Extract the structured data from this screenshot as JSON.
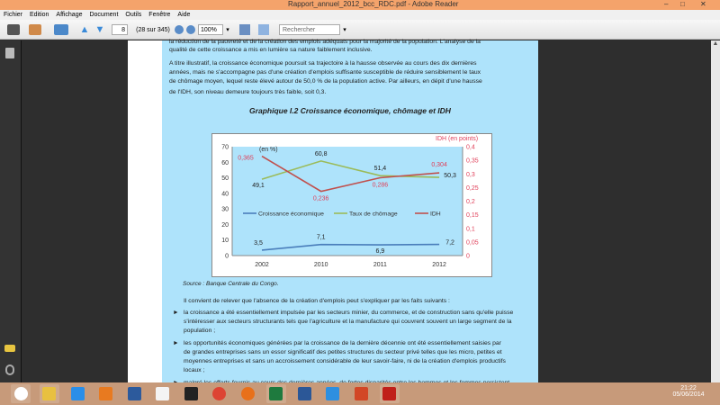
{
  "window": {
    "title": "Rapport_annuel_2012_bcc_RDC.pdf - Adobe Reader",
    "min": "–",
    "max": "□",
    "close": "✕"
  },
  "menu": [
    "Fichier",
    "Edition",
    "Affichage",
    "Document",
    "Outils",
    "Fenêtre",
    "Aide"
  ],
  "toolbar": {
    "page_value": "8",
    "page_count": "(28 sur 345)",
    "zoom_value": "100%",
    "search_placeholder": "Rechercher"
  },
  "doc": {
    "para1": [
      "la réduction de la pauvreté et de la création des emplois adéquats pour la majorité de la population. L'analyse de la",
      "qualité de cette croissance a mis en lumière sa nature faiblement inclusive."
    ],
    "para2": [
      "A titre illustratif, la croissance économique poursuit sa trajectoire à la hausse observée au cours des dix dernières",
      "années, mais ne s'accompagne pas d'une création d'emplois suffisante susceptible de réduire sensiblement le taux",
      "de chômage moyen, lequel reste élevé autour de 50,0 % de la population active. Par ailleurs, en dépit d'une hausse",
      "de l'IDH, son niveau demeure toujours très faible, soit 0,3."
    ],
    "chart_title": "Graphique I.2 Croissance économique, chômage et IDH",
    "source": "Source : Banque Centrale du Congo.",
    "para3": "Il convient de relever que l'absence de la création d'emplois peut s'expliquer par les faits suivants :",
    "bullets": [
      [
        "la croissance a été essentiellement impulsée par les secteurs minier, du commerce, et de construction sans qu'elle puisse",
        "s'intéresser aux secteurs structurants tels que l'agriculture et la manufacture qui couvrent  souvent un large segment de la",
        "population ;"
      ],
      [
        "les opportunités économiques générées par la croissance de la dernière décennie ont été essentiellement saisies par",
        "de grandes entreprises sans un essor significatif des petites structures du secteur privé telles que les micro, petites et",
        "moyennes entreprises et sans un accroissement considérable de leur savoir-faire, ni de la création d'emplois productifs",
        "locaux ;"
      ],
      [
        "malgré les efforts fournis au cours des dernières années, de fortes disparités entre les hommes et les femmes persistent"
      ]
    ]
  },
  "chart_data": {
    "type": "line",
    "categories": [
      "2002",
      "2010",
      "2011",
      "2012"
    ],
    "left_axis": {
      "label": "(en %)",
      "range": [
        0,
        70
      ],
      "ticks": [
        "0",
        "10",
        "20",
        "30",
        "40",
        "50",
        "60",
        "70"
      ]
    },
    "right_axis": {
      "label": "IDH  (en points)",
      "range": [
        0,
        0.4
      ],
      "ticks": [
        "0",
        "0,05",
        "0,1",
        "0,15",
        "0,2",
        "0,25",
        "0,3",
        "0,35",
        "0,4"
      ]
    },
    "series": [
      {
        "name": "Croissance économique",
        "axis": "left",
        "color": "#4a7ebb",
        "values": [
          3.5,
          7.1,
          6.9,
          7.2
        ],
        "labels": [
          "3,5",
          "7,1",
          "6,9",
          "7,2"
        ]
      },
      {
        "name": "Taux de chômage",
        "axis": "left",
        "color": "#9bbb59",
        "values": [
          49.1,
          60.8,
          51.4,
          50.3
        ],
        "labels": [
          "49,1",
          "60,8",
          "51,4",
          "50,3"
        ]
      },
      {
        "name": "IDH",
        "axis": "right",
        "color": "#c0504d",
        "values": [
          0.365,
          0.236,
          0.286,
          0.304
        ],
        "labels": [
          "0,365",
          "0,236",
          "0,286",
          "0,304"
        ]
      }
    ],
    "legend_placement": "center",
    "grid": false
  },
  "taskbar": {
    "time": "21:22",
    "date": "05/06/2014",
    "icons": [
      "hp-icon",
      "explorer-icon",
      "ie-icon",
      "app-icon",
      "calendar-icon",
      "file-icon",
      "webcam-icon",
      "chrome-icon",
      "firefox-icon",
      "excel-icon",
      "word-icon",
      "dropbox-icon",
      "powerpoint-icon",
      "acrobat-icon"
    ]
  }
}
